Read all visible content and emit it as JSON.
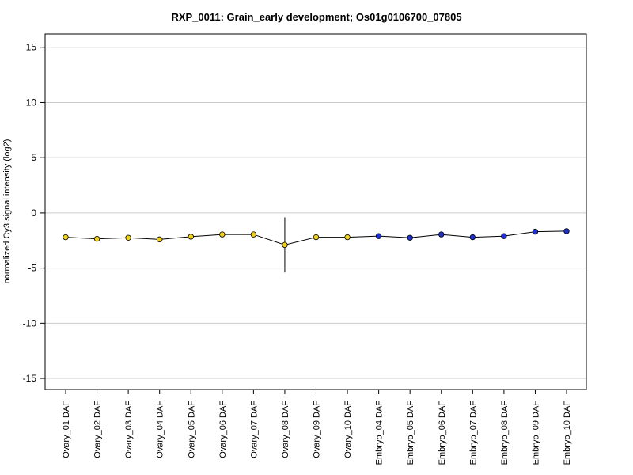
{
  "chart_data": {
    "type": "line",
    "title": "RXP_0011: Grain_early development; Os01g0106700_07805",
    "ylabel": "normalized Cy3 signal intensity (log2)",
    "xlabel": "",
    "ylim": [
      -16,
      16.2
    ],
    "yticks": [
      -15,
      -10,
      -5,
      0,
      5,
      10,
      15
    ],
    "grid": "horizontal",
    "categories": [
      "Ovary_01 DAF",
      "Ovary_02 DAF",
      "Ovary_03 DAF",
      "Ovary_04 DAF",
      "Ovary_05 DAF",
      "Ovary_06 DAF",
      "Ovary_07 DAF",
      "Ovary_08 DAF",
      "Ovary_09 DAF",
      "Ovary_10 DAF",
      "Embryo_04 DAF",
      "Embryo_05 DAF",
      "Embryo_06 DAF",
      "Embryo_07 DAF",
      "Embryo_08 DAF",
      "Embryo_09 DAF",
      "Embryo_10 DAF"
    ],
    "values": [
      -2.2,
      -2.35,
      -2.25,
      -2.4,
      -2.15,
      -1.95,
      -1.95,
      -2.9,
      -2.2,
      -2.2,
      -2.1,
      -2.25,
      -1.95,
      -2.2,
      -2.1,
      -1.7,
      -1.65
    ],
    "errors": [
      0.2,
      0.1,
      0.1,
      0.1,
      0.15,
      0.15,
      0.2,
      2.5,
      0.1,
      0.2,
      0.1,
      0.1,
      0.1,
      0.1,
      0.1,
      0.2,
      0.1
    ],
    "point_colors": [
      "#f2d21b",
      "#f2d21b",
      "#f2d21b",
      "#f2d21b",
      "#f2d21b",
      "#f2d21b",
      "#f2d21b",
      "#f2d21b",
      "#f2d21b",
      "#f2d21b",
      "#1f2fd0",
      "#1f2fd0",
      "#1f2fd0",
      "#1f2fd0",
      "#1f2fd0",
      "#1f2fd0",
      "#1f2fd0"
    ],
    "grid_color": "#cccccc",
    "line_color": "#000000"
  }
}
